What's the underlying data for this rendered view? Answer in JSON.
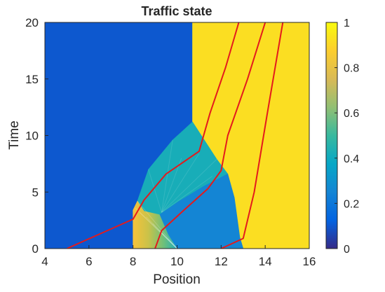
{
  "chart_data": {
    "type": "heatmap",
    "title": "Traffic state",
    "xlabel": "Position",
    "ylabel": "Time",
    "xlim": [
      4,
      16
    ],
    "ylim": [
      0,
      20
    ],
    "xticks": [
      4,
      6,
      8,
      10,
      12,
      14,
      16
    ],
    "yticks": [
      0,
      5,
      10,
      15,
      20
    ],
    "colorbar": {
      "ticks": [
        0,
        0.2,
        0.4,
        0.6,
        0.8,
        1
      ],
      "min": 0,
      "max": 1,
      "colormap": "parula"
    },
    "background_density": 0.1,
    "regions": [
      {
        "name": "high",
        "density": 0.92,
        "polygon": [
          [
            10.7,
            20
          ],
          [
            16,
            20
          ],
          [
            16,
            0
          ],
          [
            13,
            0
          ],
          [
            12.85,
            1
          ],
          [
            12.6,
            4.5
          ],
          [
            12.3,
            6.6
          ],
          [
            11.8,
            7.9
          ],
          [
            11.2,
            9.7
          ],
          [
            10.7,
            11.2
          ]
        ]
      },
      {
        "name": "wave-mid",
        "density": 0.42,
        "polygon": [
          [
            8.2,
            4.2
          ],
          [
            8.7,
            7.0
          ],
          [
            9.8,
            9.6
          ],
          [
            10.7,
            11.2
          ],
          [
            11.2,
            9.7
          ],
          [
            11.8,
            7.9
          ],
          [
            12.3,
            6.6
          ],
          [
            11.2,
            5.5
          ],
          [
            10.1,
            4.2
          ],
          [
            9.2,
            3.0
          ],
          [
            8.5,
            3.3
          ]
        ]
      },
      {
        "name": "wave-low",
        "density": 0.25,
        "polygon": [
          [
            9.2,
            3.0
          ],
          [
            10.1,
            4.2
          ],
          [
            11.2,
            5.5
          ],
          [
            12.3,
            6.6
          ],
          [
            12.6,
            4.5
          ],
          [
            12.85,
            1
          ],
          [
            13,
            0
          ],
          [
            10,
            0
          ],
          [
            9.6,
            1.2
          ]
        ]
      },
      {
        "name": "fan",
        "density": 0.6,
        "polygon": [
          [
            8,
            0
          ],
          [
            10,
            0
          ],
          [
            9.6,
            1.2
          ],
          [
            9.2,
            3.0
          ],
          [
            8.5,
            3.3
          ],
          [
            8.2,
            4.2
          ],
          [
            8,
            3.4
          ]
        ]
      }
    ],
    "trajectories": [
      [
        [
          5,
          0
        ],
        [
          6.5,
          1.3
        ],
        [
          8,
          2.6
        ],
        [
          8.5,
          4.3
        ],
        [
          9.5,
          6.6
        ],
        [
          11,
          8.6
        ],
        [
          11.5,
          12
        ],
        [
          12.2,
          16
        ],
        [
          12.8,
          20
        ]
      ],
      [
        [
          9,
          0
        ],
        [
          9.3,
          1.6
        ],
        [
          10.2,
          3.2
        ],
        [
          11.4,
          5.3
        ],
        [
          12,
          6.9
        ],
        [
          12.3,
          10
        ],
        [
          13.2,
          15
        ],
        [
          14,
          20
        ]
      ],
      [
        [
          12,
          0
        ],
        [
          13,
          0.9
        ],
        [
          13.5,
          5
        ],
        [
          14.1,
          12
        ],
        [
          14.8,
          20
        ]
      ]
    ],
    "trajectory_color": "#e41a1c"
  }
}
